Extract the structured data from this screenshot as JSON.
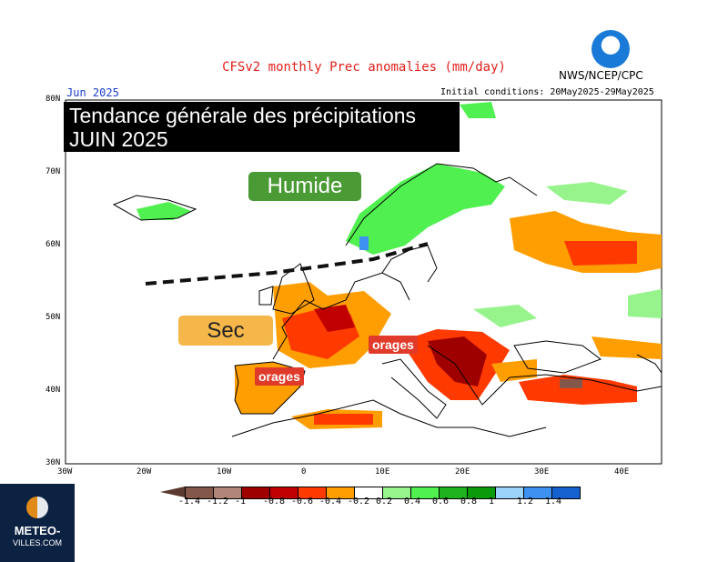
{
  "header": {
    "title": "CFSv2 monthly Prec anomalies (mm/day)",
    "agency": "NWS/NCEP/CPC",
    "noaa_logo": "NOAA",
    "month": "Jun 2025",
    "initial_conditions": "Initial conditions: 20May2025-29May2025"
  },
  "overlay": {
    "title_line1": "Tendance générale des précipitations",
    "title_line2": "JUIN 2025",
    "humide": "Humide",
    "sec": "Sec",
    "orages": [
      "orages",
      "orages"
    ]
  },
  "axes": {
    "lat": [
      "80N",
      "70N",
      "60N",
      "50N",
      "40N",
      "30N"
    ],
    "lon": [
      "30W",
      "20W",
      "10W",
      "0",
      "10E",
      "20E",
      "30E",
      "40E"
    ]
  },
  "colorbar": {
    "labels": [
      "-1.4",
      "-1.2",
      "-1",
      "-0.8",
      "-0.6",
      "-0.4",
      "-0.2",
      "0.2",
      "0.4",
      "0.6",
      "0.8",
      "1",
      "1.2",
      "1.4"
    ],
    "colors": [
      "#83584a",
      "#b08678",
      "#9e0000",
      "#c00000",
      "#ff3a00",
      "#ff9e00",
      "#ffffff",
      "#97f48c",
      "#50f050",
      "#1fb31f",
      "#0a9a0a",
      "#9bd3fb",
      "#3d91f0",
      "#1661d0"
    ]
  },
  "logo": {
    "line1": "METEO-",
    "line2": "VILLES.COM"
  }
}
